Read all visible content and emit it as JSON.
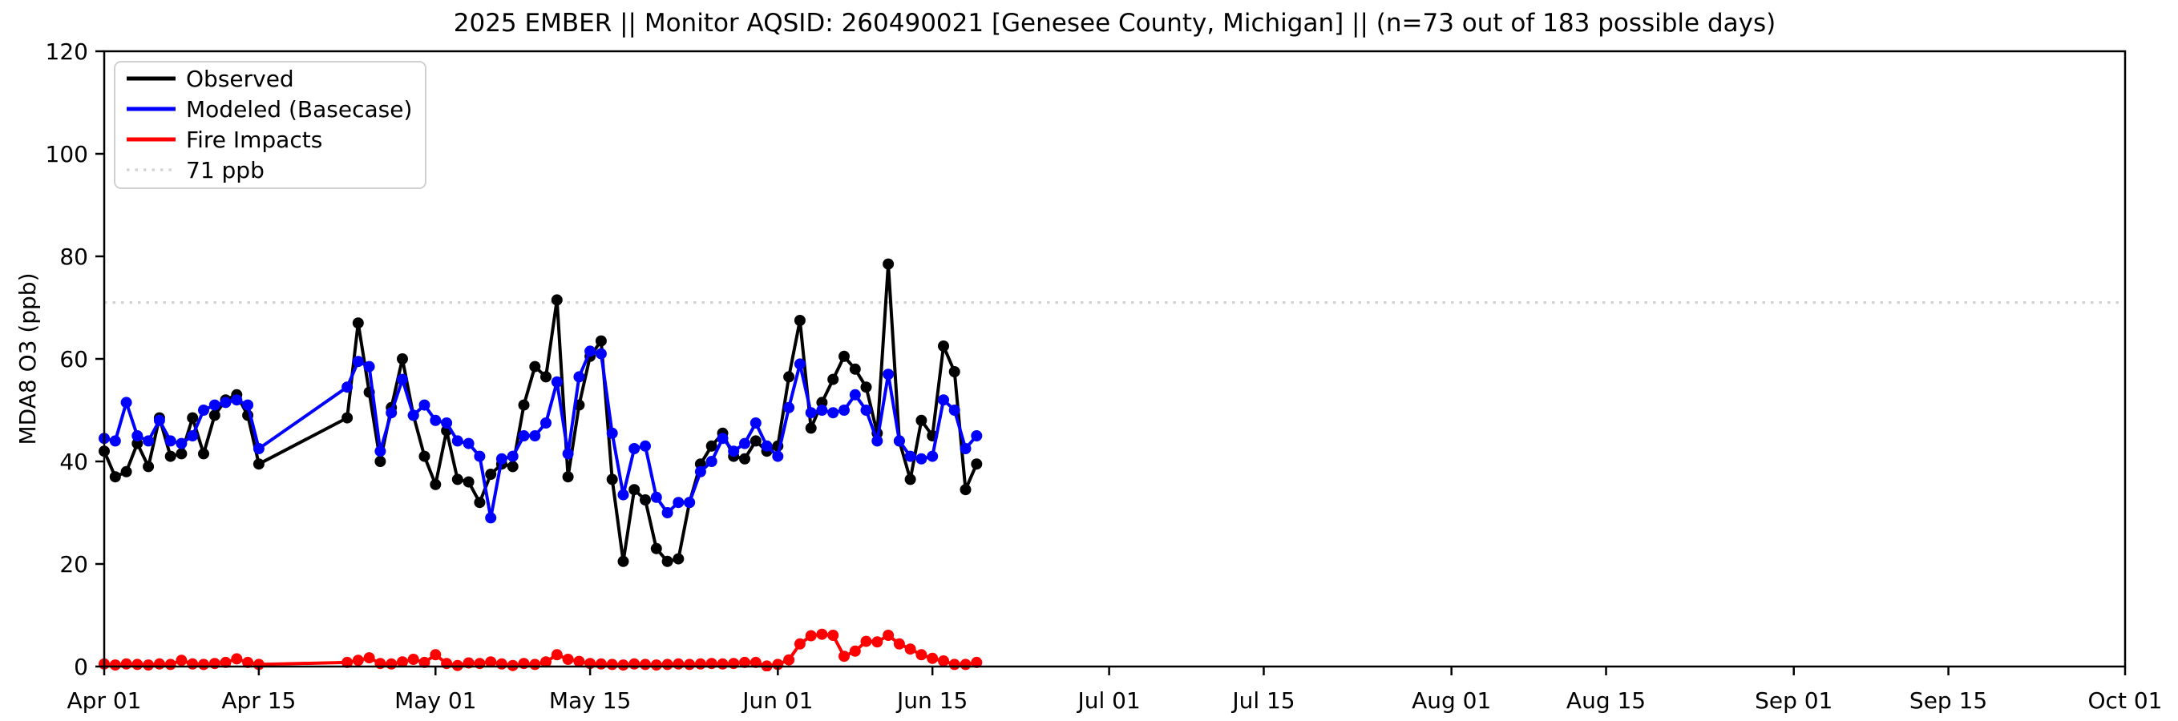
{
  "figure": {
    "title": "2025 EMBER || Monitor AQSID: 260490021 [Genesee County, Michigan] || (n=73 out of 183 possible days)",
    "ylabel": "MDA8 O3 (ppb)",
    "background": "#ffffff"
  },
  "legend": {
    "position": "upper-left",
    "items": [
      {
        "label": "Observed",
        "color": "#000000",
        "style": "solid"
      },
      {
        "label": "Modeled (Basecase)",
        "color": "#0000ff",
        "style": "solid"
      },
      {
        "label": "Fire Impacts",
        "color": "#ff0000",
        "style": "solid"
      },
      {
        "label": "71 ppb",
        "color": "#d3d3d3",
        "style": "dotted"
      }
    ]
  },
  "chart_data": {
    "type": "line",
    "title": "2025 EMBER || Monitor AQSID: 260490021 [Genesee County, Michigan] || (n=73 out of 183 possible days)",
    "xlabel": "",
    "ylabel": "MDA8 O3 (ppb)",
    "ylim": [
      0,
      120
    ],
    "xlim_labels": [
      "Apr 01",
      "Oct 01"
    ],
    "grid": false,
    "threshold_ppb": 71,
    "threshold_color": "#d3d3d3",
    "y_tick_labels": [
      "0",
      "20",
      "40",
      "60",
      "80",
      "100",
      "120"
    ],
    "x_tick_labels": [
      "Apr 01",
      "Apr 15",
      "May 01",
      "May 15",
      "Jun 01",
      "Jun 15",
      "Jul 01",
      "Jul 15",
      "Aug 01",
      "Aug 15",
      "Sep 01",
      "Sep 15",
      "Oct 01"
    ],
    "dates": [
      "Apr 01",
      "Apr 02",
      "Apr 03",
      "Apr 04",
      "Apr 05",
      "Apr 06",
      "Apr 07",
      "Apr 08",
      "Apr 09",
      "Apr 10",
      "Apr 11",
      "Apr 12",
      "Apr 13",
      "Apr 14",
      "Apr 15",
      "Apr 23",
      "Apr 24",
      "Apr 25",
      "Apr 26",
      "Apr 27",
      "Apr 28",
      "Apr 29",
      "Apr 30",
      "May 01",
      "May 02",
      "May 03",
      "May 04",
      "May 05",
      "May 06",
      "May 07",
      "May 08",
      "May 09",
      "May 10",
      "May 11",
      "May 12",
      "May 13",
      "May 14",
      "May 15",
      "May 16",
      "May 17",
      "May 18",
      "May 19",
      "May 20",
      "May 21",
      "May 22",
      "May 23",
      "May 24",
      "May 25",
      "May 26",
      "May 27",
      "May 28",
      "May 29",
      "May 30",
      "May 31",
      "Jun 01",
      "Jun 02",
      "Jun 03",
      "Jun 04",
      "Jun 05",
      "Jun 06",
      "Jun 07",
      "Jun 08",
      "Jun 09",
      "Jun 10",
      "Jun 11",
      "Jun 12",
      "Jun 13",
      "Jun 14",
      "Jun 15",
      "Jun 16",
      "Jun 17",
      "Jun 18",
      "Jun 19"
    ],
    "series": [
      {
        "name": "Observed",
        "color": "#000000",
        "values": [
          42,
          37,
          38,
          43.5,
          39,
          48.5,
          41,
          41.5,
          48.5,
          41.5,
          49,
          52,
          53,
          49,
          39.5,
          48.5,
          67,
          53.5,
          40,
          50.5,
          60,
          49,
          41,
          35.5,
          46,
          36.5,
          36,
          32,
          37.5,
          39.5,
          39,
          51,
          58.5,
          56.5,
          71.5,
          37,
          51,
          60.5,
          63.5,
          36.5,
          20.5,
          34.5,
          32.5,
          23,
          20.5,
          21,
          32,
          39.5,
          43,
          45.5,
          41,
          40.5,
          44,
          42,
          43,
          56.5,
          67.5,
          46.5,
          51.5,
          56,
          60.5,
          58,
          54.5,
          45.5,
          78.5,
          44,
          36.5,
          48,
          45,
          62.5,
          57.5,
          34.5,
          39.5
        ]
      },
      {
        "name": "Modeled (Basecase)",
        "color": "#0000ff",
        "values": [
          44.5,
          44,
          51.5,
          45,
          44,
          48,
          44,
          43.5,
          45,
          50,
          51,
          51.5,
          52,
          51,
          42.5,
          54.5,
          59.5,
          58.5,
          42,
          49.5,
          56,
          49,
          51,
          48,
          47.5,
          44,
          43.5,
          41,
          29,
          40.5,
          41,
          45,
          45,
          47.5,
          55.5,
          41.5,
          56.5,
          61.5,
          61,
          45.5,
          33.5,
          42.5,
          43,
          33,
          30,
          32,
          32,
          38,
          40,
          44.5,
          42,
          43.5,
          47.5,
          43,
          41,
          50.5,
          59,
          49.5,
          50,
          49.5,
          50,
          53,
          50,
          44,
          57,
          44,
          41,
          40.5,
          41,
          52,
          50,
          42.5,
          45
        ]
      },
      {
        "name": "Fire Impacts",
        "color": "#ff0000",
        "values": [
          0.5,
          0.3,
          0.5,
          0.4,
          0.3,
          0.5,
          0.4,
          1.2,
          0.5,
          0.4,
          0.6,
          0.8,
          1.5,
          0.8,
          0.4,
          0.8,
          1.2,
          1.7,
          0.6,
          0.5,
          0.9,
          1.4,
          0.8,
          2.3,
          0.6,
          0.2,
          0.7,
          0.6,
          0.9,
          0.5,
          0.2,
          0.6,
          0.4,
          0.9,
          2.3,
          1.4,
          1.0,
          0.6,
          0.5,
          0.4,
          0.3,
          0.5,
          0.4,
          0.3,
          0.4,
          0.5,
          0.4,
          0.5,
          0.6,
          0.5,
          0.6,
          0.8,
          0.8,
          0.1,
          0.4,
          1.3,
          4.4,
          6.0,
          6.3,
          6.1,
          2.0,
          3.0,
          4.9,
          4.8,
          6.1,
          4.4,
          3.4,
          2.3,
          1.6,
          1.1,
          0.4,
          0.4,
          0.8
        ]
      }
    ],
    "notes": "Data present Apr 01-Apr 15 and Apr 23-Jun 19 (73 of 183 days); gap Apr 16-22 drawn as straight connecting segment."
  }
}
